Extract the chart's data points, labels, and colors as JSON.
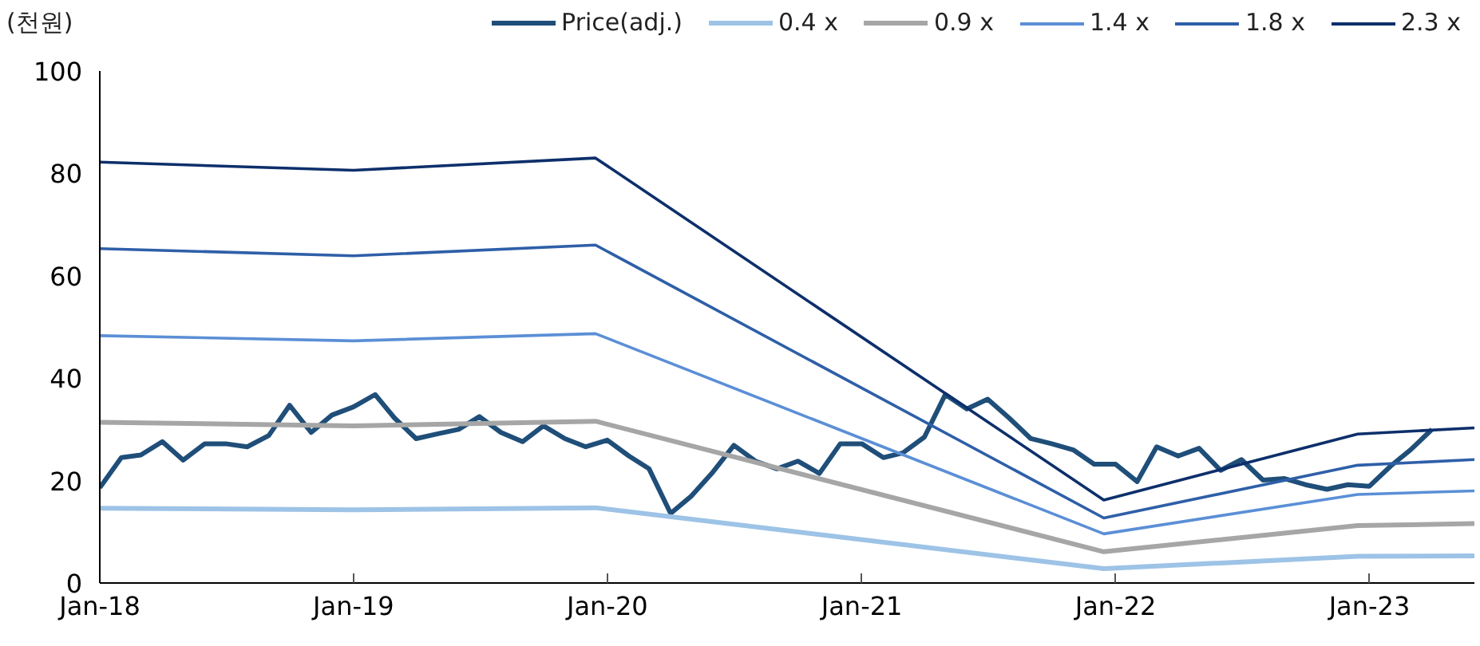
{
  "chart_data": {
    "type": "line",
    "ylabel": "(천원)",
    "xlim": [
      "2018-01",
      "2023-06"
    ],
    "ylim": [
      0,
      100
    ],
    "yticks": [
      0,
      20,
      40,
      60,
      80,
      100
    ],
    "xticks": [
      {
        "value": "2018-01",
        "label": "Jan-18"
      },
      {
        "value": "2019-01",
        "label": "Jan-19"
      },
      {
        "value": "2020-01",
        "label": "Jan-20"
      },
      {
        "value": "2021-01",
        "label": "Jan-21"
      },
      {
        "value": "2022-01",
        "label": "Jan-22"
      },
      {
        "value": "2023-01",
        "label": "Jan-23"
      }
    ],
    "grid": false,
    "legend": "top",
    "marker": "none",
    "line_style": "solid",
    "series": [
      {
        "name": "Price(adj.)",
        "color": "#1f4e79",
        "x": [
          "2018-01",
          "2018-02",
          "2018-03",
          "2018-04",
          "2018-05",
          "2018-06",
          "2018-07",
          "2018-08",
          "2018-09",
          "2018-10",
          "2018-11",
          "2018-12",
          "2019-01",
          "2019-02",
          "2019-03",
          "2019-04",
          "2019-05",
          "2019-06",
          "2019-07",
          "2019-08",
          "2019-09",
          "2019-10",
          "2019-11",
          "2019-12",
          "2020-01",
          "2020-02",
          "2020-03",
          "2020-04",
          "2020-05",
          "2020-06",
          "2020-07",
          "2020-08",
          "2020-09",
          "2020-10",
          "2020-11",
          "2020-12",
          "2021-01",
          "2021-02",
          "2021-03",
          "2021-04",
          "2021-05",
          "2021-06",
          "2021-07",
          "2021-08",
          "2021-09",
          "2021-10",
          "2021-11",
          "2021-12",
          "2022-01",
          "2022-02",
          "2022-03",
          "2022-04",
          "2022-05",
          "2022-06",
          "2022-07",
          "2022-08",
          "2022-09",
          "2022-10",
          "2022-11",
          "2022-12",
          "2023-01",
          "2023-02",
          "2023-03",
          "2023-04"
        ],
        "values": [
          18.6,
          24.5,
          25,
          27.6,
          24,
          27.2,
          27.2,
          26.6,
          28.8,
          34.7,
          29.4,
          32.8,
          34.4,
          36.8,
          32.2,
          28.2,
          29.1,
          30,
          32.5,
          29.4,
          27.6,
          30.7,
          28.2,
          26.6,
          27.9,
          24.8,
          22.3,
          13.6,
          17,
          21.7,
          26.9,
          23.8,
          22.3,
          23.8,
          21.4,
          27.2,
          27.2,
          24.5,
          25.4,
          28.5,
          36.8,
          34,
          35.9,
          32.2,
          28.2,
          27.2,
          26,
          23.2,
          23.2,
          19.8,
          26.6,
          24.8,
          26.3,
          22,
          24.1,
          20.1,
          20.4,
          19.2,
          18.3,
          19.2,
          18.9,
          22.9,
          26,
          30
        ]
      },
      {
        "name": "0.4 x",
        "color": "#9dc3e6",
        "x": [
          "2018-01",
          "2019-01",
          "2019-12-15",
          "2021-12-15",
          "2022-12-15",
          "2023-06"
        ],
        "values": [
          14.6,
          14.3,
          14.7,
          2.8,
          5.2,
          5.3
        ]
      },
      {
        "name": "0.9 x",
        "color": "#a6a6a6",
        "x": [
          "2018-01",
          "2019-01",
          "2019-12-15",
          "2021-12-15",
          "2022-12-15",
          "2023-06"
        ],
        "values": [
          31.4,
          30.7,
          31.6,
          6.1,
          11.2,
          11.6
        ]
      },
      {
        "name": "1.4 x",
        "color": "#5b8fd6",
        "x": [
          "2018-01",
          "2019-01",
          "2019-12-15",
          "2021-12-15",
          "2022-12-15",
          "2023-06"
        ],
        "values": [
          48.3,
          47.3,
          48.7,
          9.6,
          17.3,
          18
        ]
      },
      {
        "name": "1.8 x",
        "color": "#2e5fa8",
        "x": [
          "2018-01",
          "2019-01",
          "2019-12-15",
          "2021-12-15",
          "2022-12-15",
          "2023-06"
        ],
        "values": [
          65.3,
          63.9,
          66,
          12.7,
          23,
          24.1
        ]
      },
      {
        "name": "2.3 x",
        "color": "#0d2f6b",
        "x": [
          "2018-01",
          "2019-01",
          "2019-12-15",
          "2021-12-15",
          "2022-12-15",
          "2023-06"
        ],
        "values": [
          82.2,
          80.6,
          83,
          16.2,
          29.1,
          30.3
        ]
      }
    ]
  }
}
